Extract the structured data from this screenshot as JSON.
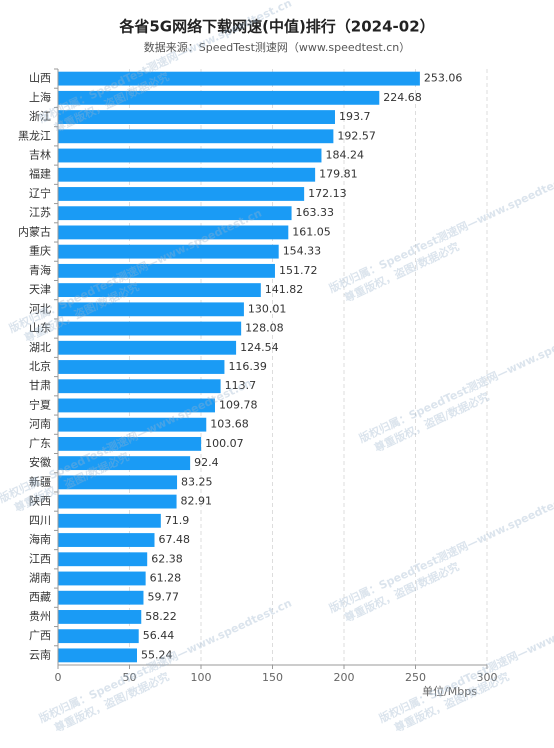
{
  "chart_data": {
    "type": "bar",
    "orientation": "horizontal",
    "title": "各省5G网络下载网速(中值)排行（2024-02）",
    "subtitle": "数据来源：SpeedTest测速网（www.speedtest.cn）",
    "x_axis_label": "单位/Mbps",
    "categories": [
      "山西",
      "上海",
      "浙江",
      "黑龙江",
      "吉林",
      "福建",
      "辽宁",
      "江苏",
      "内蒙古",
      "重庆",
      "青海",
      "天津",
      "河北",
      "山东",
      "湖北",
      "北京",
      "甘肃",
      "宁夏",
      "河南",
      "广东",
      "安徽",
      "新疆",
      "陕西",
      "四川",
      "海南",
      "江西",
      "湖南",
      "西藏",
      "贵州",
      "广西",
      "云南"
    ],
    "values": [
      253.06,
      224.68,
      193.7,
      192.57,
      184.24,
      179.81,
      172.13,
      163.33,
      161.05,
      154.33,
      151.72,
      141.82,
      130.01,
      128.08,
      124.54,
      116.39,
      113.7,
      109.78,
      103.68,
      100.07,
      92.4,
      83.25,
      82.91,
      71.9,
      67.48,
      62.38,
      61.28,
      59.77,
      58.22,
      56.44,
      55.24
    ],
    "color": "#1a9bf5",
    "xlim": [
      0,
      300
    ],
    "xticks": [
      0,
      50,
      100,
      150,
      200,
      250,
      300
    ],
    "grid": true,
    "watermark": [
      "版权归属：SpeedTest测速网—www.speedtest.cn",
      "尊重版权，盗图/数据必究"
    ]
  }
}
